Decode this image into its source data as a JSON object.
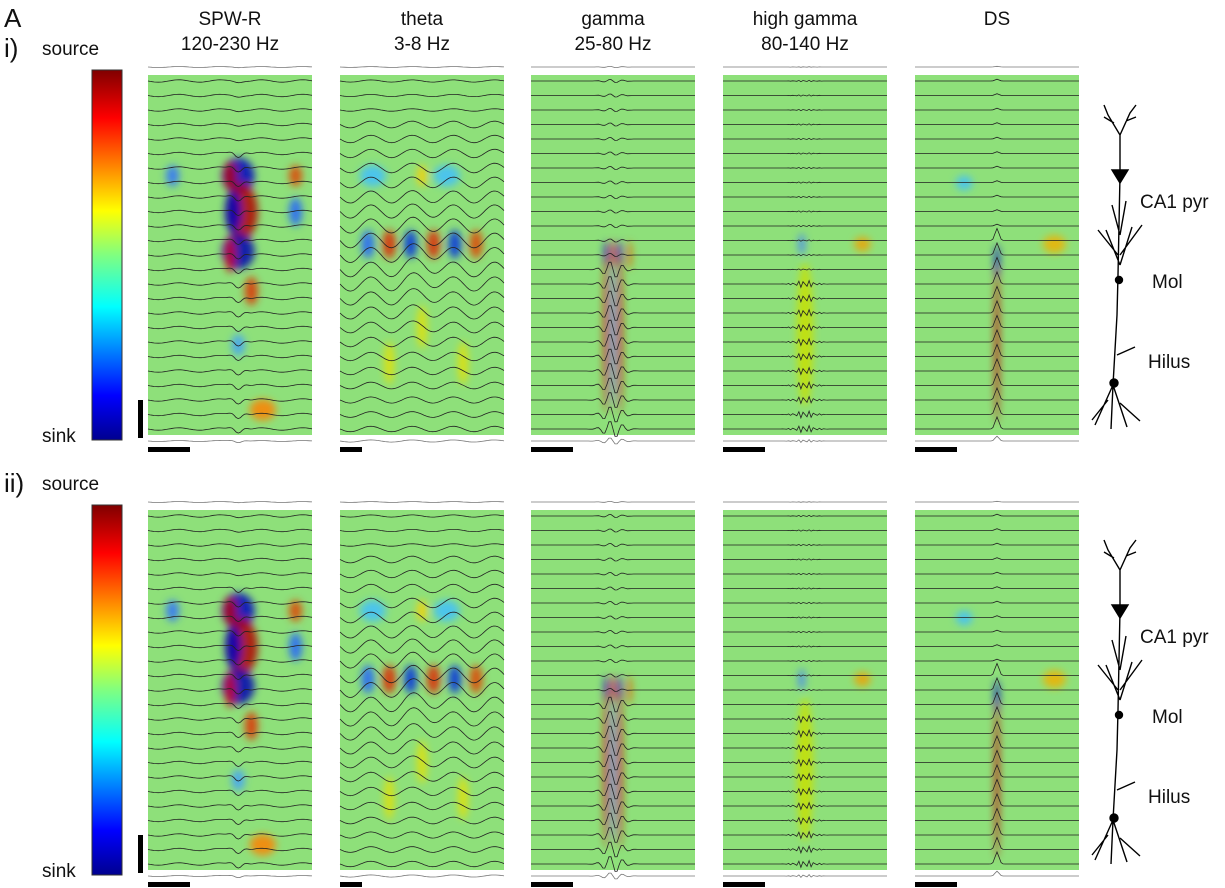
{
  "panel_label": "A",
  "columns": [
    {
      "name": "SPW-R",
      "band": "120-230 Hz"
    },
    {
      "name": "theta",
      "band": "3-8 Hz"
    },
    {
      "name": "gamma",
      "band": "25-80 Hz"
    },
    {
      "name": "high gamma",
      "band": "80-140 Hz"
    },
    {
      "name": "DS"
    }
  ],
  "rows": [
    {
      "label": "i)",
      "colorbar": {
        "top": "source",
        "bottom": "sink"
      },
      "neuron_labels": [
        "CA1 pyr",
        "Mol",
        "Hilus"
      ]
    },
    {
      "label": "ii)",
      "colorbar": {
        "top": "source",
        "bottom": "sink"
      },
      "neuron_labels": [
        "CA1 pyr",
        "Mol",
        "Hilus"
      ]
    }
  ]
}
